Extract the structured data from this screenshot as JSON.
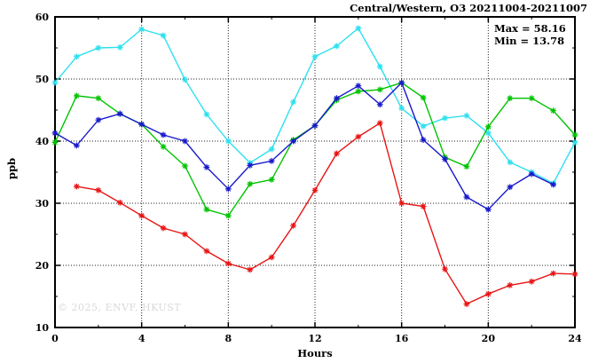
{
  "watermark": "© 2025, ENVF, HKUST",
  "chart_data": {
    "type": "line",
    "title": "Central/Western, O3 20211004-20211007",
    "xlabel": "Hours",
    "ylabel": "ppb",
    "xlim": [
      0,
      24
    ],
    "ylim": [
      10,
      60
    ],
    "grid": "dotted lines at major ticks, on",
    "legend_position": "none",
    "annotations": {
      "max_label": "Max = 58.16",
      "min_label": "Min = 13.78",
      "max_value": 58.16,
      "min_value": 13.78
    },
    "x_axis": {
      "ticks": [
        0,
        4,
        8,
        12,
        16,
        20,
        24
      ],
      "minor_step": 2
    },
    "y_axis": {
      "ticks": [
        10,
        20,
        30,
        40,
        50,
        60
      ],
      "minor_step": 5
    },
    "series": [
      {
        "name": "cyan-line",
        "color": "#2ee0ee",
        "x": [
          0,
          1,
          2,
          3,
          4,
          5,
          6,
          7,
          8,
          9,
          10,
          11,
          12,
          13,
          14,
          15,
          16,
          17,
          18,
          19,
          20,
          21,
          22,
          23,
          24
        ],
        "y": [
          49.4,
          53.6,
          55.0,
          55.1,
          58.0,
          57.0,
          49.9,
          44.3,
          40.0,
          36.5,
          38.7,
          46.3,
          53.6,
          55.3,
          58.16,
          52.0,
          45.3,
          42.4,
          43.7,
          44.1,
          41.3,
          36.6,
          35.0,
          33.2,
          39.8
        ]
      },
      {
        "name": "green-line",
        "color": "#00c400",
        "x": [
          0,
          1,
          2,
          3,
          4,
          5,
          6,
          7,
          8,
          9,
          10,
          11,
          12,
          13,
          14,
          15,
          16,
          17,
          18,
          19,
          20,
          21,
          22,
          23,
          24
        ],
        "y": [
          39.8,
          47.3,
          46.9,
          44.4,
          42.7,
          39.1,
          36.0,
          29.0,
          28.0,
          33.1,
          33.8,
          40.2,
          42.5,
          46.6,
          48.0,
          48.3,
          49.4,
          47.0,
          37.4,
          35.9,
          42.3,
          46.9,
          46.9,
          44.9,
          41.0
        ]
      },
      {
        "name": "blue-line",
        "color": "#1818cc",
        "x": [
          0,
          1,
          2,
          3,
          4,
          5,
          6,
          7,
          8,
          9,
          10,
          11,
          12,
          13,
          14,
          15,
          16,
          17,
          18,
          19,
          20,
          21,
          22,
          23
        ],
        "y": [
          41.3,
          39.3,
          43.4,
          44.4,
          42.7,
          41.0,
          40.0,
          35.8,
          32.3,
          36.1,
          36.8,
          40.0,
          42.5,
          46.9,
          48.9,
          45.9,
          49.4,
          40.2,
          37.1,
          31.0,
          29.0,
          32.6,
          34.7,
          33.0
        ]
      },
      {
        "name": "red-line",
        "color": "#e81414",
        "x": [
          1,
          2,
          3,
          4,
          5,
          6,
          7,
          8,
          9,
          10,
          11,
          12,
          13,
          14,
          15,
          16,
          17,
          18,
          19,
          20,
          21,
          22,
          23,
          24
        ],
        "y": [
          32.7,
          32.1,
          30.1,
          28.0,
          26.0,
          25.0,
          22.3,
          20.3,
          19.3,
          21.3,
          26.4,
          32.1,
          38.0,
          40.7,
          42.9,
          30.0,
          29.5,
          19.4,
          13.78,
          15.4,
          16.8,
          17.4,
          18.7,
          18.6
        ]
      }
    ]
  }
}
